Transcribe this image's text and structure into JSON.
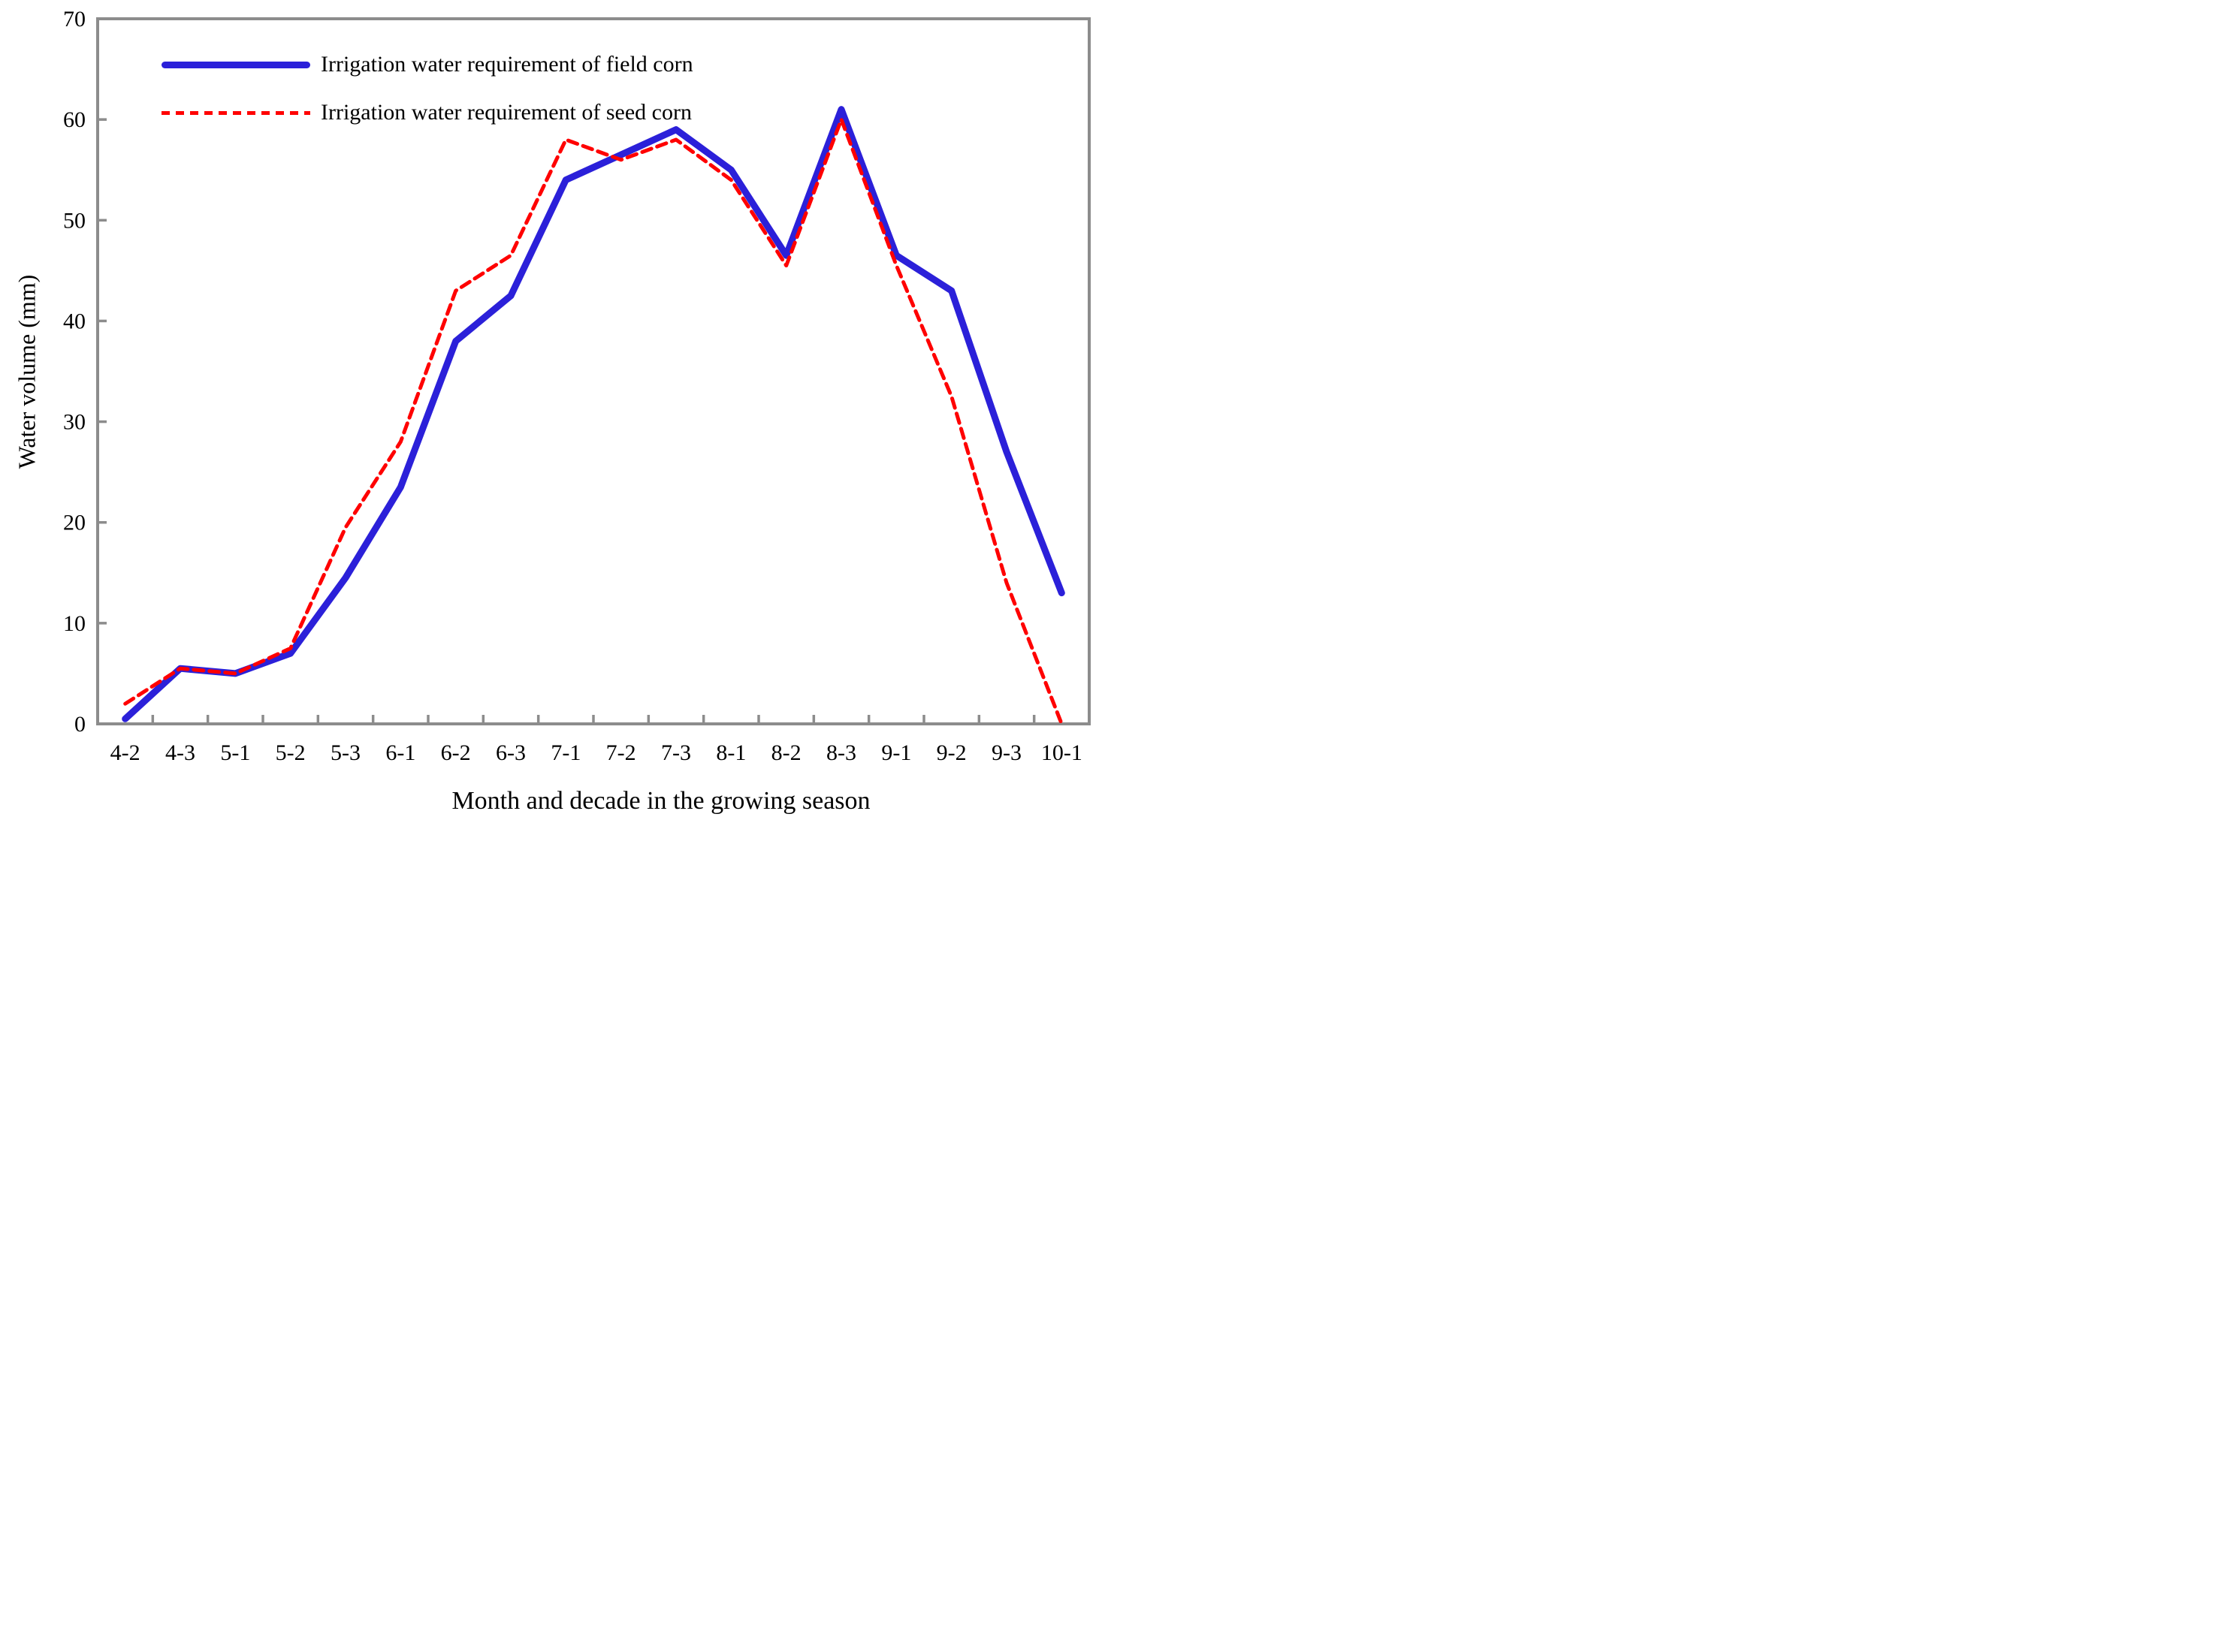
{
  "chart_data": {
    "type": "line",
    "title": "",
    "xlabel": "Month and decade in the growing season",
    "ylabel": "Water volume (mm)",
    "categories": [
      "4-2",
      "4-3",
      "5-1",
      "5-2",
      "5-3",
      "6-1",
      "6-2",
      "6-3",
      "7-1",
      "7-2",
      "7-3",
      "8-1",
      "8-2",
      "8-3",
      "9-1",
      "9-2",
      "9-3",
      "10-1"
    ],
    "y_ticks": [
      0,
      10,
      20,
      30,
      40,
      50,
      60,
      70
    ],
    "ylim": [
      0,
      70
    ],
    "grid": false,
    "legend_position": "top-left-inside",
    "axis_color": "#8C8C8C",
    "series": [
      {
        "name": "Irrigation water requirement of field corn",
        "color": "#2B20D9",
        "style": "solid",
        "values": [
          0.5,
          5.5,
          5,
          7,
          14.5,
          23.5,
          38,
          42.5,
          54,
          56.5,
          59,
          55,
          46.5,
          61,
          46.5,
          43,
          27,
          13
        ]
      },
      {
        "name": "Irrigation water requirement of seed corn",
        "color": "#FF0000",
        "style": "dashed",
        "values": [
          2,
          5.5,
          5,
          7.5,
          19.5,
          28,
          43,
          46.5,
          58,
          56,
          58,
          54,
          45.5,
          60,
          45.5,
          32.5,
          14,
          0
        ]
      }
    ]
  }
}
